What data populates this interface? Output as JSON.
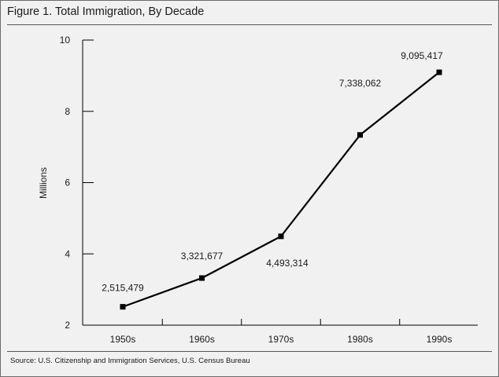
{
  "figure": {
    "title": "Figure 1. Total Immigration, By Decade",
    "source": "Source: U.S. Citizenship and Immigration Services, U.S. Census Bureau"
  },
  "chart_data": {
    "type": "line",
    "title": "Figure 1. Total Immigration, By Decade",
    "xlabel": "",
    "ylabel": "Millions",
    "categories": [
      "1950s",
      "1960s",
      "1970s",
      "1980s",
      "1990s"
    ],
    "values": [
      2.515479,
      3.321677,
      4.493314,
      7.338062,
      9.095417
    ],
    "value_labels": [
      "2,515,479",
      "3,321,677",
      "4,493,314",
      "7,338,062",
      "9,095,417"
    ],
    "yticks": [
      "2",
      "4",
      "6",
      "8",
      "10"
    ],
    "ylim": [
      2,
      10
    ],
    "grid": false,
    "legend": "none",
    "colors": {
      "line": "#000000",
      "background": "#f1f1f1"
    }
  }
}
